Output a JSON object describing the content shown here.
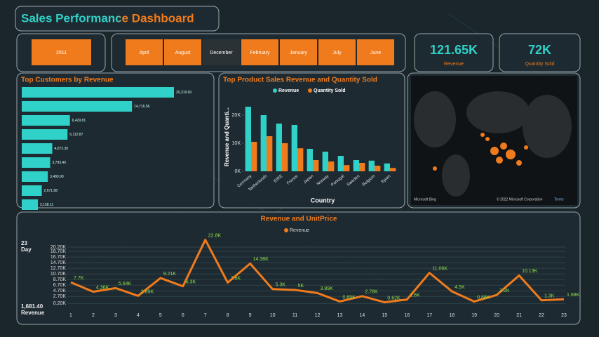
{
  "header": {
    "title": "Sales Performance Dashboard"
  },
  "slicers": {
    "year": "2011",
    "months": [
      "April",
      "August",
      "December",
      "February",
      "January",
      "July",
      "June"
    ]
  },
  "kpis": [
    {
      "value": "121.65K",
      "label": "Revenue"
    },
    {
      "value": "72K",
      "label": "Quantity Sold"
    }
  ],
  "map": {
    "brand": "Microsoft Bing",
    "attribution": "© 2022 Microsoft Corporation",
    "terms": "Terms"
  },
  "chart_data": [
    {
      "type": "hbar",
      "title": "Top Customers by Revenue",
      "categories": [
        null,
        null,
        null,
        null,
        null,
        null,
        null,
        null,
        null
      ],
      "values": [
        20319.6,
        14716.56,
        6429.81,
        6112.87,
        4072.3,
        3793.4,
        3480.9,
        2671.88,
        2158.11
      ],
      "value_labels": [
        "20,319.60",
        "14,716.56",
        "6,429.81",
        "6,112.87",
        "4,072.30",
        "3,793.40",
        "3,480.90",
        "2,671.88",
        "2,158.11"
      ],
      "color": "#2fd1c8",
      "xlim": [
        0,
        25000
      ]
    },
    {
      "type": "bar",
      "title": "Top Product Sales Revenue and Quantity Sold",
      "x_label": "Country",
      "y_label": "Revenue and Quanti...",
      "categories": [
        "Germany",
        "Netherlands",
        "EIRE",
        "France",
        "Japan",
        "Norway",
        "Portugal",
        "Sweden",
        "Belgium",
        "Spain"
      ],
      "series": [
        {
          "name": "Revenue",
          "color": "#2fd1c8",
          "values": [
            23000,
            20000,
            17000,
            16500,
            8000,
            7000,
            5500,
            4000,
            3800,
            2800
          ]
        },
        {
          "name": "Quantity Sold",
          "color": "#f07b1c",
          "values": [
            10500,
            12500,
            10000,
            8200,
            4000,
            3500,
            2200,
            3000,
            2000,
            1200
          ]
        }
      ],
      "ylim": [
        0,
        25000
      ],
      "yticks": [
        {
          "value": 0,
          "label": "0K"
        },
        {
          "value": 10000,
          "label": "10K"
        },
        {
          "value": 20000,
          "label": "20K"
        }
      ]
    },
    {
      "type": "line",
      "title": "Revenue and UnitPrice",
      "annotations": [
        "23",
        "Day",
        "1,681.40",
        "Revenue"
      ],
      "categories": [
        "1",
        "2",
        "3",
        "4",
        "5",
        "6",
        "7",
        "8",
        "9",
        "10",
        "11",
        "12",
        "13",
        "14",
        "15",
        "16",
        "17",
        "18",
        "19",
        "20",
        "21",
        "22",
        "23"
      ],
      "series": [
        {
          "name": "Revenue",
          "color": "#f07b1c",
          "values": [
            7700,
            4360,
            5640,
            2890,
            9210,
            6300,
            22800,
            7600,
            14380,
            5300,
            5000,
            3890,
            890,
            2780,
            620,
            1600,
            11060,
            4500,
            880,
            3200,
            10130,
            1300,
            1680
          ],
          "value_labels": [
            "7.7K",
            "4.36K",
            "5.64K",
            "2.89K",
            "9.21K",
            "6.3K",
            "22.8K",
            "7.6K",
            "14.38K",
            "5.3K",
            "5K",
            "3.89K",
            "0.89K",
            "2.78K",
            "0.62K",
            "1.6K",
            "11.06K",
            "4.5K",
            "0.88K",
            "3.2K",
            "10.13K",
            "1.3K",
            "1.68K"
          ]
        }
      ],
      "ylim": [
        0,
        20200
      ],
      "yticks": [
        {
          "value": 200,
          "label": "0.20K"
        },
        {
          "value": 2700,
          "label": "2.70K"
        },
        {
          "value": 4700,
          "label": "4.70K"
        },
        {
          "value": 6700,
          "label": "6.70K"
        },
        {
          "value": 8700,
          "label": "8.70K"
        },
        {
          "value": 10700,
          "label": "10.70K"
        },
        {
          "value": 12700,
          "label": "12.70K"
        },
        {
          "value": 14700,
          "label": "14.70K"
        },
        {
          "value": 16700,
          "label": "16.70K"
        },
        {
          "value": 18700,
          "label": "18.70K"
        },
        {
          "value": 20200,
          "label": "20.20K"
        }
      ],
      "grid": true
    }
  ]
}
